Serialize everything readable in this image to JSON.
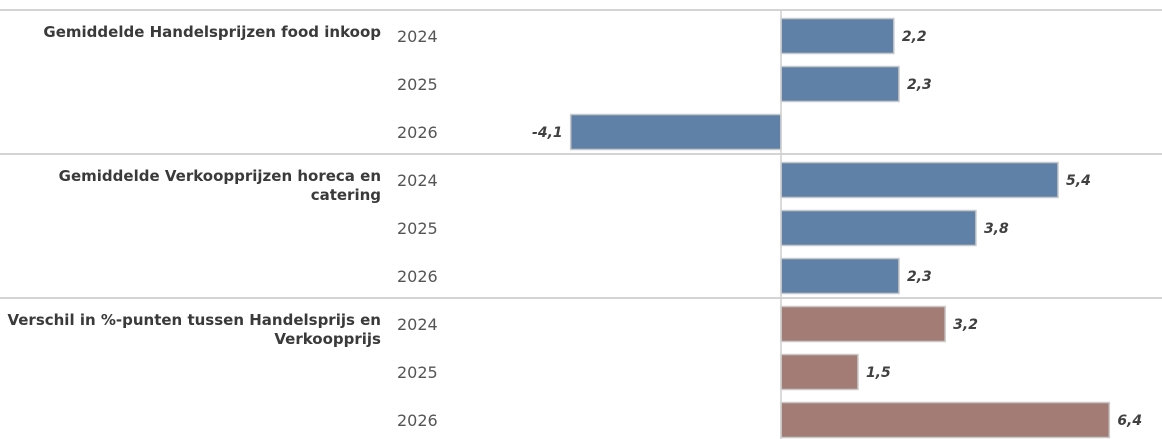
{
  "chart_data": {
    "type": "bar",
    "orientation": "horizontal",
    "grid": false,
    "groups": [
      {
        "label_lines": [
          "Gemiddelde Handelsprijzen food inkoop"
        ],
        "color": "#5f81a8",
        "categories": [
          "2024",
          "2025",
          "2026"
        ],
        "values": [
          2.2,
          2.3,
          -4.1
        ],
        "value_labels": [
          "2,2",
          "2,3",
          "-4,1"
        ]
      },
      {
        "label_lines": [
          "Gemiddelde Verkoopprijzen horeca en",
          "catering"
        ],
        "color": "#5f81a8",
        "categories": [
          "2024",
          "2025",
          "2026"
        ],
        "values": [
          5.4,
          3.8,
          2.3
        ],
        "value_labels": [
          "5,4",
          "3,8",
          "2,3"
        ]
      },
      {
        "label_lines": [
          "Verschil in %-punten tussen Handelsprijs en",
          "Verkoopprijs"
        ],
        "color": "#a47c76",
        "categories": [
          "2024",
          "2025",
          "2026"
        ],
        "values": [
          3.2,
          1.5,
          6.4
        ],
        "value_labels": [
          "3,2",
          "1,5",
          "6,4"
        ]
      }
    ]
  }
}
